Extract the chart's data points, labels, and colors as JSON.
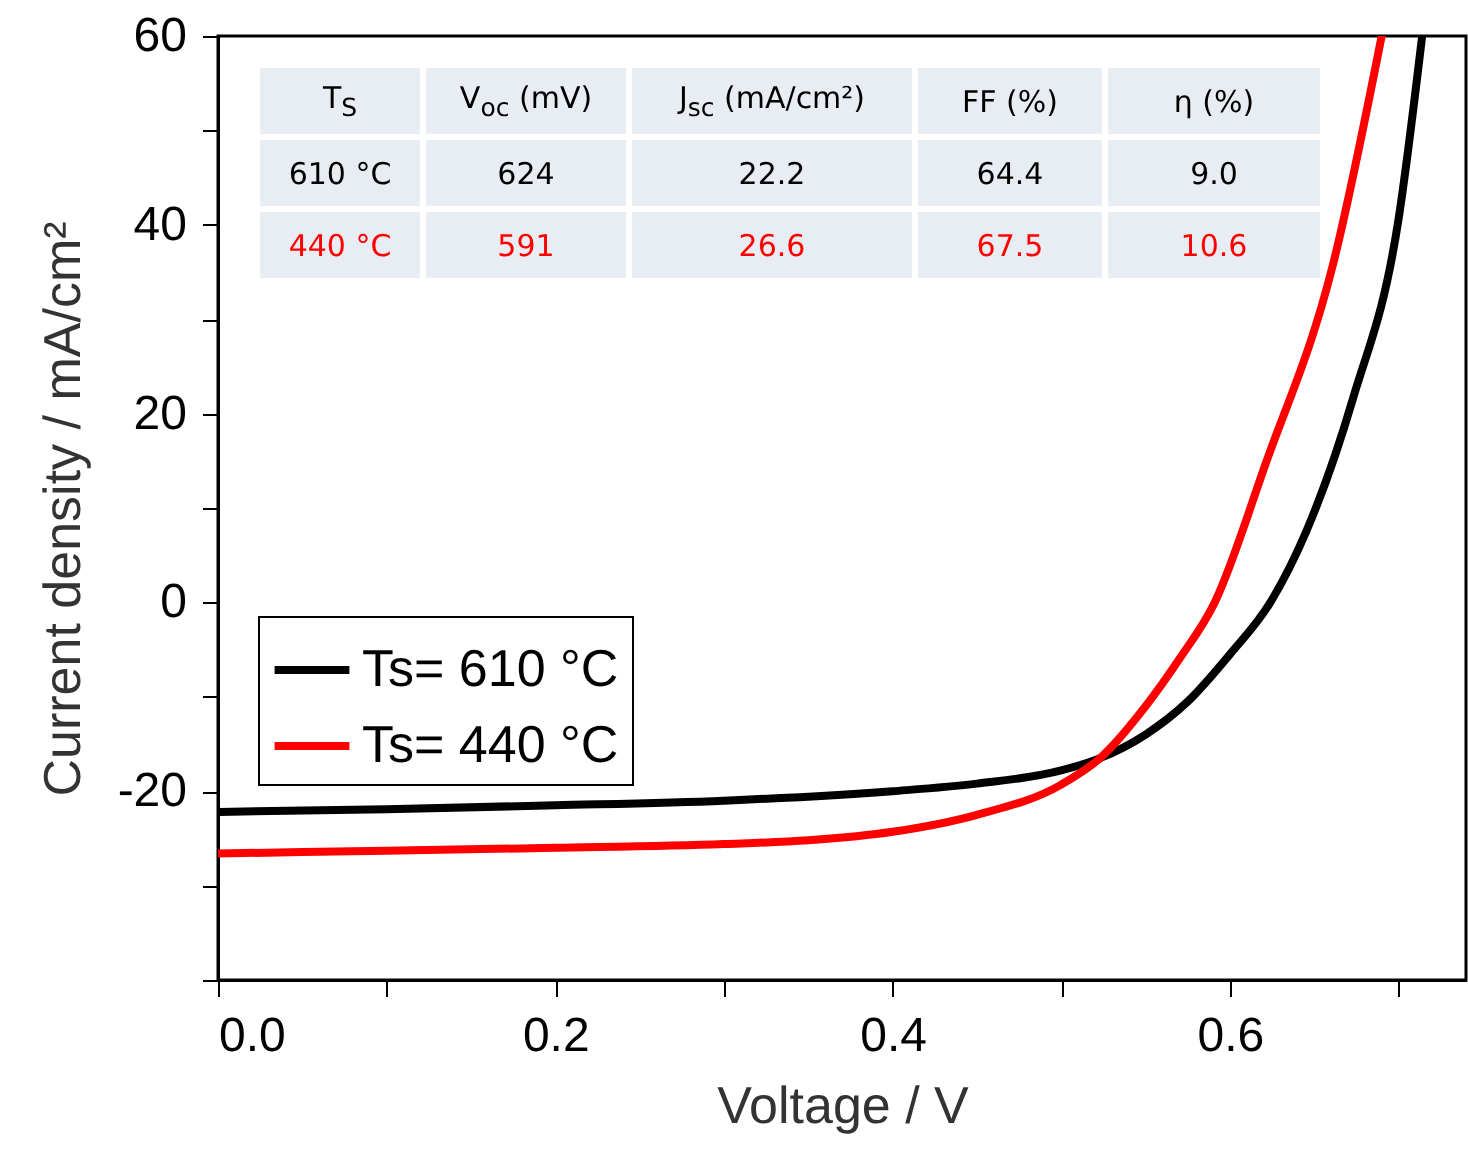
{
  "chart_data": {
    "type": "line",
    "xlabel": "Voltage / V",
    "ylabel": "Current density / mA/cm²",
    "xlim": [
      0,
      0.74
    ],
    "xticks": [
      {
        "value": 0,
        "label": "0.0"
      },
      {
        "value": 0.1,
        "label": null
      },
      {
        "value": 0.2,
        "label": "0.2"
      },
      {
        "value": 0.3,
        "label": null
      },
      {
        "value": 0.4,
        "label": "0.4"
      },
      {
        "value": 0.5,
        "label": null
      },
      {
        "value": 0.6,
        "label": "0.6"
      },
      {
        "value": 0.7,
        "label": null
      }
    ],
    "ylim": [
      -40,
      60
    ],
    "yticks": [
      {
        "value": -40,
        "label": null
      },
      {
        "value": -30,
        "label": null
      },
      -20,
      {
        "value": -10,
        "label": null
      },
      0,
      {
        "value": 10,
        "label": null
      },
      20,
      {
        "value": 30,
        "label": null
      },
      40,
      {
        "value": 50,
        "label": null
      },
      60
    ],
    "grid": false,
    "legend": "left",
    "line_style": "solid",
    "marker": "none",
    "series": [
      {
        "name": "Ts= 610 °C",
        "color": "#000000",
        "x": [
          0,
          0.1,
          0.2,
          0.3,
          0.4,
          0.45,
          0.5,
          0.523,
          0.55,
          0.575,
          0.6,
          0.624,
          0.645,
          0.673,
          0.7,
          0.714
        ],
        "values": [
          -22.2,
          -21.9,
          -21.5,
          -21,
          -20,
          -19.2,
          -17.8,
          -16.5,
          -14,
          -10.5,
          -5.5,
          0,
          7.4,
          21.6,
          40.6,
          60
        ]
      },
      {
        "name": "Ts= 440 °C",
        "color": "#ff0000",
        "x": [
          0,
          0.1,
          0.2,
          0.3,
          0.35,
          0.4,
          0.45,
          0.5,
          0.523,
          0.55,
          0.57,
          0.591,
          0.621,
          0.661,
          0.69
        ],
        "values": [
          -26.6,
          -26.3,
          -26,
          -25.6,
          -25.2,
          -24.3,
          -22.5,
          -19.3,
          -16.5,
          -11,
          -6,
          0,
          14.6,
          35.7,
          60
        ]
      }
    ],
    "annotations": [
      "T$_{S}$",
      "V$_{oc}$ (mV)",
      "J$_{sc}$ (mA/cm²)",
      "FF (%)",
      "η (%)",
      "610 °C",
      "624",
      "22.2",
      "64.4",
      "9.0",
      "440 °C",
      "591",
      "26.6",
      "67.5",
      "10.6"
    ]
  }
}
